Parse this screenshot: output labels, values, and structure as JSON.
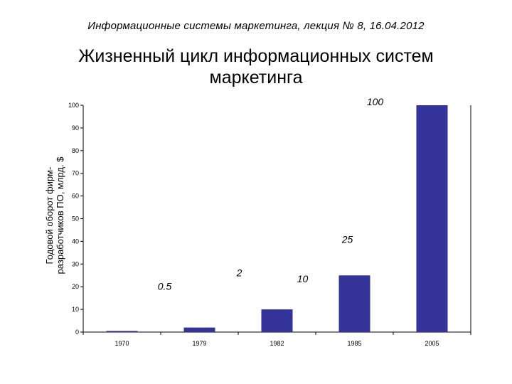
{
  "header": {
    "subtitle": "Информационные системы маркетинга, лекция № 8, 16.04.2012"
  },
  "chart_data": {
    "type": "bar",
    "title_lines": [
      "Жизненный цикл информационных систем",
      "маркетинга"
    ],
    "ylabel_lines": [
      "Годовой оборот фирм-",
      "разработчиков ПО, млрд. $"
    ],
    "xlabel": "",
    "categories": [
      "1970",
      "1979",
      "1982",
      "1985",
      "2005"
    ],
    "values": [
      0.5,
      2,
      10,
      25,
      100
    ],
    "data_labels": [
      "0.5",
      "2",
      "10",
      "25",
      "100"
    ],
    "ylim": [
      0,
      100
    ],
    "yticks": [
      0,
      10,
      20,
      30,
      40,
      50,
      60,
      70,
      80,
      90,
      100
    ],
    "bar_color": "#333399",
    "grid": false,
    "legend": "none"
  }
}
